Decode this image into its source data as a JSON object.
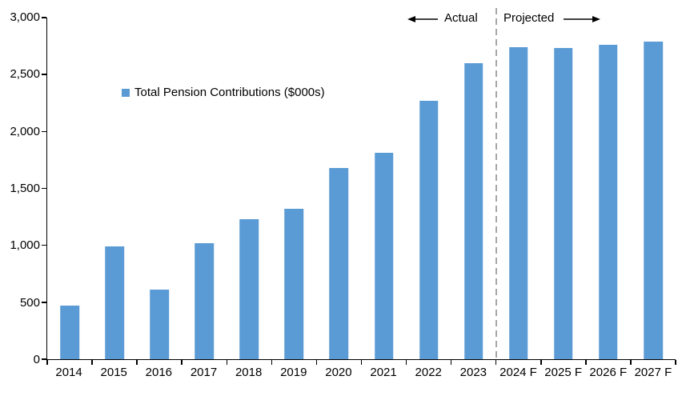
{
  "chart_data": {
    "type": "bar",
    "title": "",
    "legend_label": "Total Pension Contributions ($000s)",
    "categories": [
      "2014",
      "2015",
      "2016",
      "2017",
      "2018",
      "2019",
      "2020",
      "2021",
      "2022",
      "2023",
      "2024 F",
      "2025 F",
      "2026 F",
      "2027 F"
    ],
    "values": [
      470,
      990,
      610,
      1020,
      1230,
      1320,
      1680,
      1810,
      2270,
      2600,
      2740,
      2730,
      2760,
      2790
    ],
    "ylim": [
      0,
      3000
    ],
    "yticks": [
      {
        "value": 0,
        "label": "0"
      },
      {
        "value": 500,
        "label": "500"
      },
      {
        "value": 1000,
        "label": "1,000"
      },
      {
        "value": 1500,
        "label": "1,500"
      },
      {
        "value": 2000,
        "label": "2,000"
      },
      {
        "value": 2500,
        "label": "2,500"
      },
      {
        "value": 3000,
        "label": "3,000"
      }
    ],
    "grid": false,
    "legend_position": "inside-top-left",
    "bar_color": "#5B9BD5",
    "divider_after_index": 9,
    "divider_color": "#a6a6a6",
    "annotations": {
      "actual": "Actual",
      "projected": "Projected"
    }
  }
}
